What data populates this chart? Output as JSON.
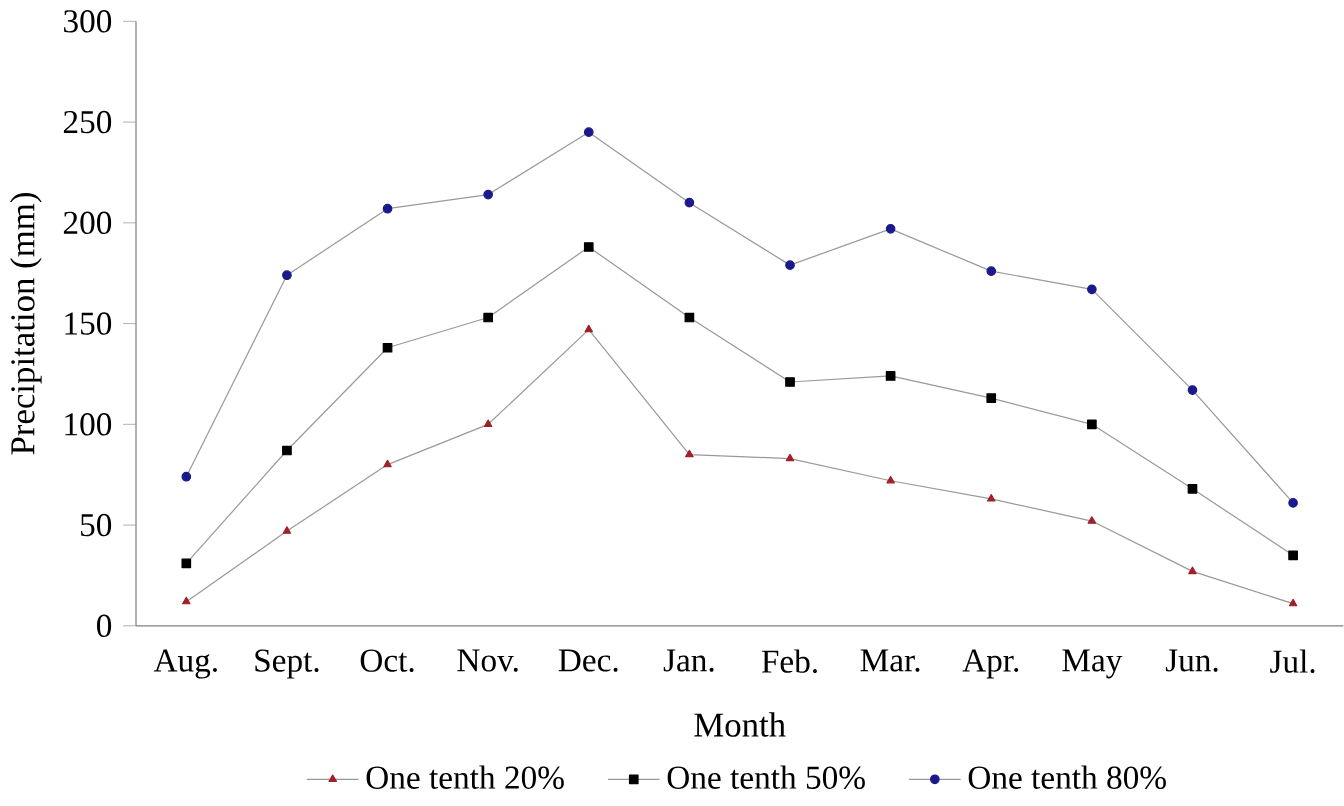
{
  "chart_data": {
    "type": "line",
    "xlabel": "Month",
    "ylabel": "Precipitation (mm)",
    "categories": [
      "Aug.",
      "Sept.",
      "Oct.",
      "Nov.",
      "Dec.",
      "Jan.",
      "Feb.",
      "Mar.",
      "Apr.",
      "May",
      "Jun.",
      "Jul."
    ],
    "ylim": [
      0,
      300
    ],
    "yticks": [
      0,
      50,
      100,
      150,
      200,
      250,
      300
    ],
    "grid": false,
    "legend": "bottom",
    "series": [
      {
        "name": "One tenth 20%",
        "color": "#a0202a",
        "marker": "triangle",
        "values": [
          12,
          47,
          80,
          100,
          147,
          85,
          83,
          72,
          63,
          52,
          27,
          11
        ]
      },
      {
        "name": "One tenth 50%",
        "color": "#000000",
        "marker": "square",
        "values": [
          31,
          87,
          138,
          153,
          188,
          153,
          121,
          124,
          113,
          100,
          68,
          35
        ]
      },
      {
        "name": "One tenth 80%",
        "color": "#1a1a8c",
        "marker": "circle",
        "values": [
          74,
          174,
          207,
          214,
          245,
          210,
          179,
          197,
          176,
          167,
          117,
          61
        ]
      }
    ]
  }
}
